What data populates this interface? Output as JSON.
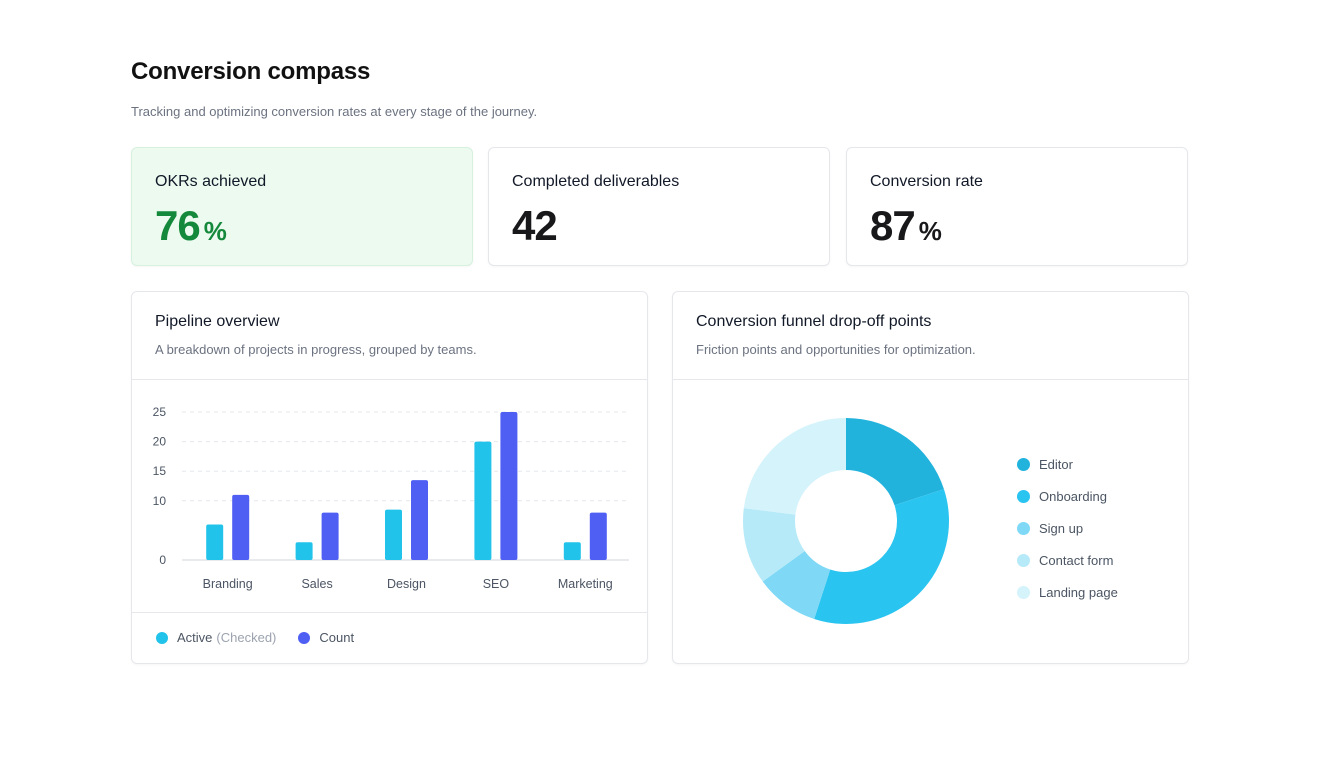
{
  "header": {
    "title": "Conversion compass",
    "subtitle": "Tracking and optimizing conversion rates at every stage of the journey."
  },
  "kpis": [
    {
      "label": "OKRs achieved",
      "value": "76",
      "unit": "%"
    },
    {
      "label": "Completed deliverables",
      "value": "42",
      "unit": ""
    },
    {
      "label": "Conversion rate",
      "value": "87",
      "unit": "%"
    }
  ],
  "pipeline": {
    "title": "Pipeline overview",
    "description": "A breakdown of projects in progress, grouped by teams.",
    "legend": {
      "active_label": "Active",
      "active_suffix": "(Checked)",
      "count_label": "Count"
    }
  },
  "funnel": {
    "title": "Conversion funnel drop-off points",
    "description": "Friction points and opportunities for optimization."
  },
  "chart_data": [
    {
      "type": "bar",
      "categories": [
        "Branding",
        "Sales",
        "Design",
        "SEO",
        "Marketing"
      ],
      "series": [
        {
          "name": "Active",
          "values": [
            6,
            3,
            8.5,
            20,
            3
          ],
          "color": "#22c3ea"
        },
        {
          "name": "Count",
          "values": [
            11,
            8,
            13.5,
            25,
            8
          ],
          "color": "#4f5ef3"
        }
      ],
      "yticks": [
        "25",
        "20",
        "15",
        "10",
        "0"
      ],
      "ylim": [
        0,
        25
      ],
      "grid": true
    },
    {
      "type": "pie",
      "donut": true,
      "labels": [
        "Editor",
        "Onboarding",
        "Sign up",
        "Contact form",
        "Landing page"
      ],
      "values": [
        20,
        35,
        10,
        12,
        23
      ],
      "colors": [
        "#22b3dd",
        "#2ac4f0",
        "#7fd9f6",
        "#b6eaf8",
        "#d5f3fb"
      ]
    }
  ]
}
